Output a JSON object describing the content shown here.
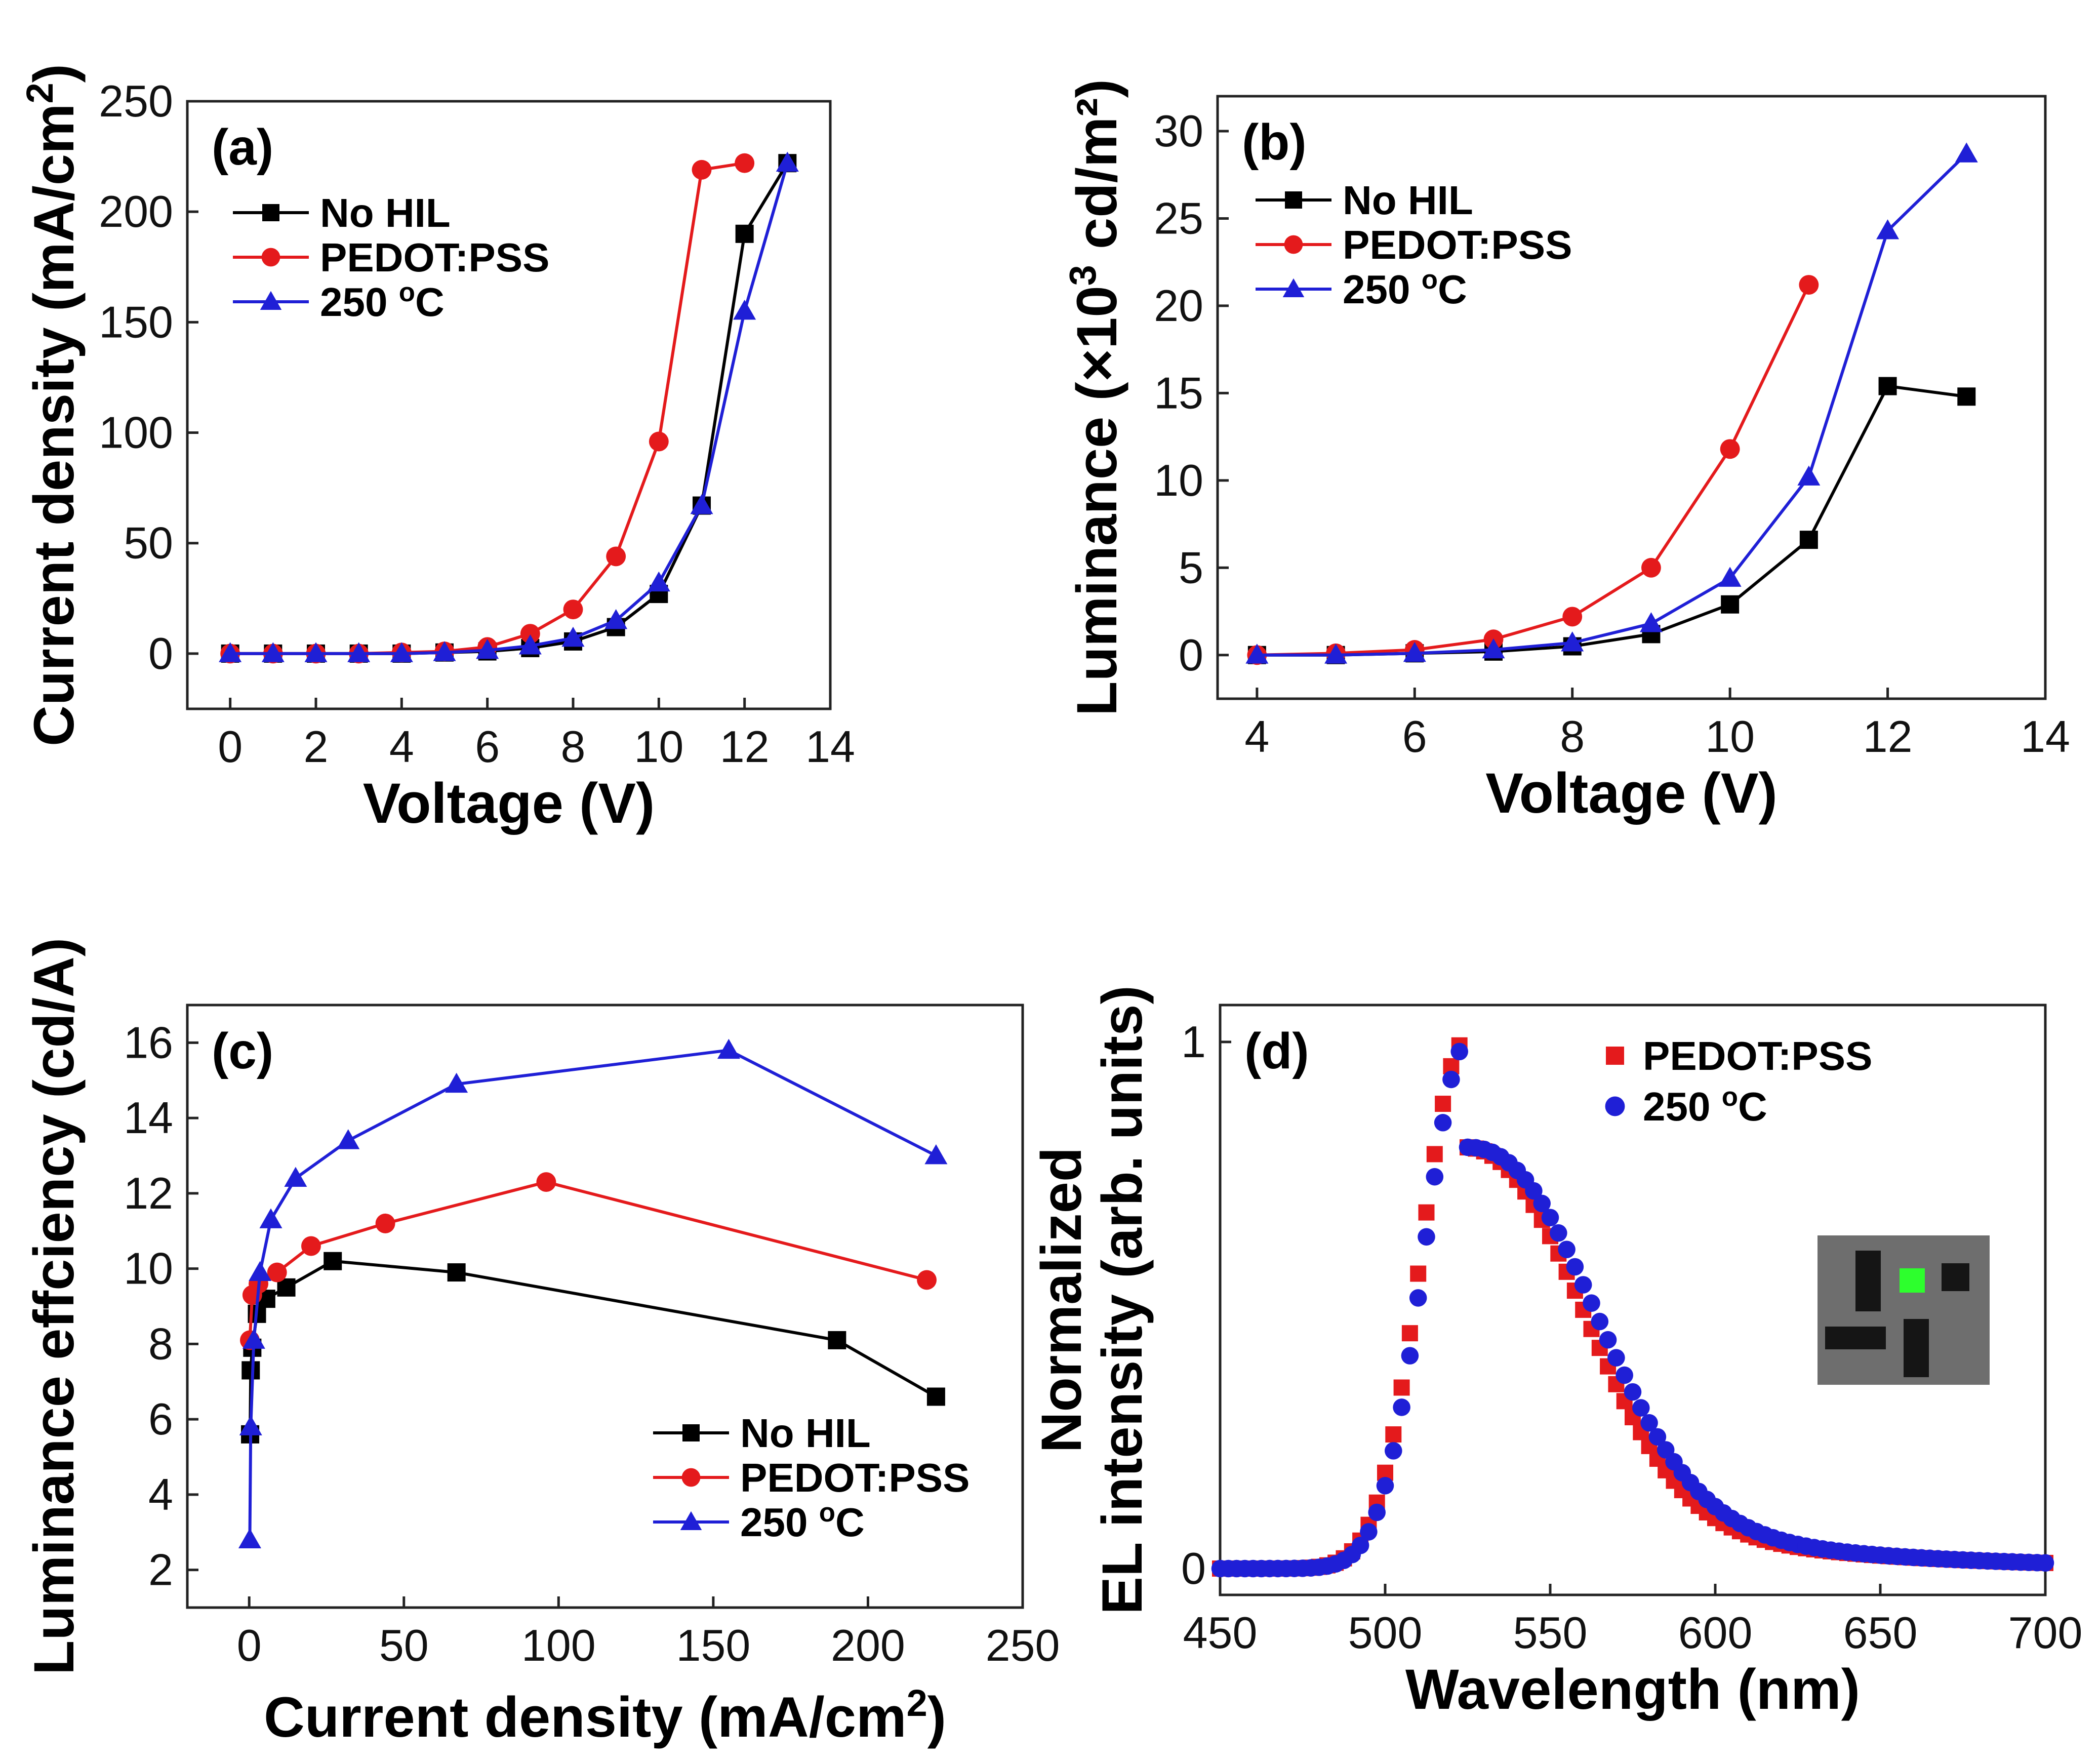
{
  "chart_data": [
    {
      "panel": "(a)",
      "type": "line",
      "xlabel": "Voltage (V)",
      "ylabel_main": "Current density (mA/cm",
      "ylabel_sup": "2",
      "ylabel_tail": ")",
      "xlim": [
        -1,
        14
      ],
      "ylim": [
        -25,
        250
      ],
      "xticks": [
        0,
        2,
        4,
        6,
        8,
        10,
        12,
        14
      ],
      "yticks": [
        0,
        50,
        100,
        150,
        200,
        250
      ],
      "legend_position": "top-left",
      "series": [
        {
          "name": "No HIL",
          "name_main": "No HIL",
          "name_sup": "",
          "name_tail": "",
          "color": "#000000",
          "marker": "square",
          "x": [
            0,
            1,
            2,
            3,
            4,
            5,
            6,
            7,
            8,
            9,
            10,
            11,
            12,
            13
          ],
          "y": [
            0,
            0,
            0,
            0,
            0,
            0.5,
            1,
            2.5,
            5.5,
            12,
            27,
            67,
            190,
            222
          ]
        },
        {
          "name": "PEDOT:PSS",
          "name_main": "PEDOT:PSS",
          "name_sup": "",
          "name_tail": "",
          "color": "#e41a1c",
          "marker": "circle",
          "x": [
            0,
            1,
            2,
            3,
            4,
            5,
            6,
            7,
            8,
            9,
            10,
            11,
            12
          ],
          "y": [
            0,
            0,
            0,
            0,
            0.5,
            1,
            3,
            9,
            20,
            44,
            96,
            219,
            222
          ]
        },
        {
          "name": "250 oC",
          "name_main": "250 ",
          "name_sup": "o",
          "name_tail": "C",
          "color": "#1f1fd6",
          "marker": "triangle",
          "x": [
            0,
            1,
            2,
            3,
            4,
            5,
            6,
            7,
            8,
            9,
            10,
            11,
            12,
            13
          ],
          "y": [
            0,
            0,
            0,
            0,
            0,
            0.5,
            1.5,
            3.5,
            7,
            15,
            32,
            67,
            155,
            222
          ]
        }
      ]
    },
    {
      "panel": "(b)",
      "type": "line",
      "xlabel": "Voltage (V)",
      "ylabel_main": "Luminance (×10",
      "ylabel_sup": "3",
      "ylabel_tail": " cd/m²)",
      "xlim": [
        3.5,
        14
      ],
      "ylim": [
        -2.5,
        32
      ],
      "xticks": [
        4,
        6,
        8,
        10,
        12,
        14
      ],
      "yticks": [
        0,
        5,
        10,
        15,
        20,
        25,
        30
      ],
      "legend_position": "top-left",
      "series": [
        {
          "name": "No HIL",
          "name_main": "No HIL",
          "name_sup": "",
          "name_tail": "",
          "color": "#000000",
          "marker": "square",
          "x": [
            4,
            5,
            6,
            7,
            8,
            9,
            10,
            11,
            12,
            13
          ],
          "y": [
            0,
            0,
            0.1,
            0.2,
            0.5,
            1.2,
            2.9,
            6.6,
            15.4,
            14.8
          ]
        },
        {
          "name": "PEDOT:PSS",
          "name_main": "PEDOT:PSS",
          "name_sup": "",
          "name_tail": "",
          "color": "#e41a1c",
          "marker": "circle",
          "x": [
            4,
            5,
            6,
            7,
            8,
            9,
            10,
            11
          ],
          "y": [
            0,
            0.1,
            0.3,
            0.9,
            2.2,
            5,
            11.8,
            21.2
          ]
        },
        {
          "name": "250 oC",
          "name_main": "250 ",
          "name_sup": "o",
          "name_tail": "C",
          "color": "#1f1fd6",
          "marker": "triangle",
          "x": [
            4,
            5,
            6,
            7,
            8,
            9,
            10,
            11,
            12,
            13
          ],
          "y": [
            0,
            0,
            0.1,
            0.3,
            0.7,
            1.8,
            4.4,
            10.2,
            24.3,
            28.7
          ]
        }
      ]
    },
    {
      "panel": "(c)",
      "type": "line",
      "xlabel_main": "Current density (mA/cm",
      "xlabel_sup": "2",
      "xlabel_tail": ")",
      "ylabel": "Luminance effciency (cd/A)",
      "xlim": [
        -20,
        250
      ],
      "ylim": [
        1,
        17
      ],
      "xticks": [
        0,
        50,
        100,
        150,
        200,
        250
      ],
      "yticks": [
        2,
        4,
        6,
        8,
        10,
        12,
        14,
        16
      ],
      "legend_position": "bottom-right",
      "series": [
        {
          "name": "No HIL",
          "name_main": "No HIL",
          "name_sup": "",
          "name_tail": "",
          "color": "#000000",
          "marker": "square",
          "x": [
            0.3,
            0.5,
            1,
            2.5,
            5.5,
            12,
            27,
            67,
            190,
            222
          ],
          "y": [
            5.6,
            7.3,
            7.9,
            8.8,
            9.2,
            9.5,
            10.2,
            9.9,
            8.1,
            6.6
          ]
        },
        {
          "name": "PEDOT:PSS",
          "name_main": "PEDOT:PSS",
          "name_sup": "",
          "name_tail": "",
          "color": "#e41a1c",
          "marker": "circle",
          "x": [
            0.2,
            1,
            3,
            9,
            20,
            44,
            96,
            219
          ],
          "y": [
            8.1,
            9.3,
            9.6,
            9.9,
            10.6,
            11.2,
            12.3,
            9.7
          ]
        },
        {
          "name": "250 oC",
          "name_main": "250 ",
          "name_sup": "o",
          "name_tail": "C",
          "color": "#1f1fd6",
          "marker": "triangle",
          "x": [
            0.2,
            0.5,
            1.5,
            3.5,
            7,
            15,
            32,
            67,
            155,
            222
          ],
          "y": [
            2.8,
            5.8,
            8.1,
            9.9,
            11.3,
            12.4,
            13.4,
            14.9,
            15.8,
            13.0
          ]
        }
      ]
    },
    {
      "panel": "(d)",
      "type": "scatter",
      "xlabel": "Wavelength (nm)",
      "ylabel_line1": "Normalized",
      "ylabel_line2": "EL intensity (arb. units)",
      "xlim": [
        450,
        700
      ],
      "ylim": [
        -0.05,
        1.07
      ],
      "xticks": [
        450,
        500,
        550,
        600,
        650,
        700
      ],
      "yticks": [
        0,
        1
      ],
      "legend_position": "top-right",
      "inset": "photo of green emitting device pixel",
      "series": [
        {
          "name": "PEDOT:PSS",
          "name_main": "PEDOT:PSS",
          "name_sup": "",
          "name_tail": "",
          "color": "#e41a1c",
          "marker": "square",
          "peak_nm": 524,
          "width_left": 13,
          "width_right": 31
        },
        {
          "name": "250 oC",
          "name_main": "250 ",
          "name_sup": "o",
          "name_tail": "C",
          "color": "#1f1fd6",
          "marker": "circle",
          "peak_nm": 525,
          "width_left": 13,
          "width_right": 33
        }
      ]
    }
  ]
}
